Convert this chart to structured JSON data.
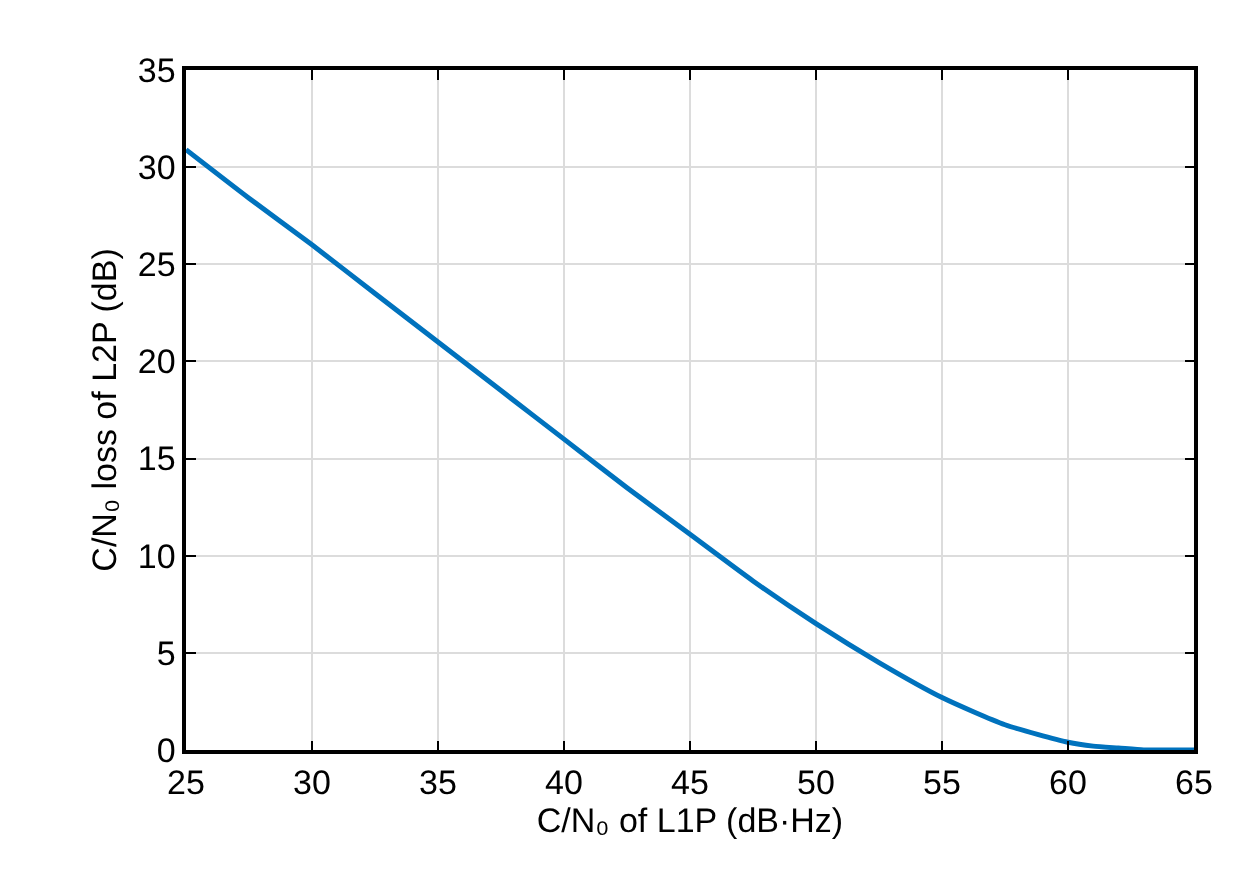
{
  "chart_data": {
    "type": "line",
    "xlabel": "C/N₀ of L1P (dB·Hz)",
    "ylabel": "C/N₀ loss of L2P (dB)",
    "x": [
      25,
      27.5,
      30,
      32.5,
      35,
      37.5,
      40,
      42.5,
      45,
      47.5,
      50,
      52.5,
      55,
      57.5,
      60,
      61,
      62,
      63,
      64,
      65
    ],
    "series": [
      {
        "color": "#0072bd",
        "values": [
          30.9,
          28.4,
          26.0,
          23.5,
          21.0,
          18.5,
          16.0,
          13.5,
          11.1,
          8.7,
          6.5,
          4.5,
          2.7,
          1.3,
          0.4,
          0.2,
          0.1,
          0,
          0,
          0
        ]
      }
    ],
    "xlim": [
      25,
      65
    ],
    "xticks": [
      25,
      30,
      35,
      40,
      45,
      50,
      55,
      60,
      65
    ],
    "ylim": [
      0,
      35
    ],
    "yticks": [
      0,
      5,
      10,
      15,
      20,
      25,
      30,
      35
    ],
    "grid": true,
    "marker": "none",
    "line_style": "solid"
  }
}
